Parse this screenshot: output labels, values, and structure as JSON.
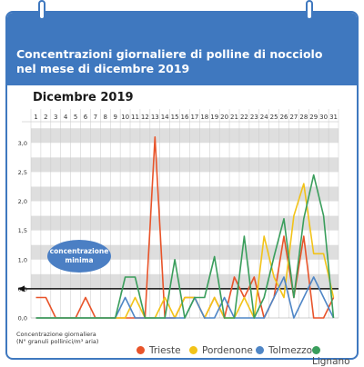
{
  "header": {
    "title_line1": "Concentrazioni giornaliere di polline di nocciolo",
    "title_line2": "nel mese di dicembre 2019"
  },
  "month_label": "Dicembre 2019",
  "annotation": {
    "line1": "concentrazione",
    "line2": "minima"
  },
  "footnote": {
    "line1": "Concentrazione giornaliera",
    "line2": "(N° granuli pollinici/m³ aria)"
  },
  "chart_data": {
    "type": "line",
    "title": "",
    "xlabel": "",
    "ylabel": "Concentrazione giornaliera (N° granuli pollinici/m³ aria)",
    "x": [
      1,
      2,
      3,
      4,
      5,
      6,
      7,
      8,
      9,
      10,
      11,
      12,
      13,
      14,
      15,
      16,
      17,
      18,
      19,
      20,
      21,
      22,
      23,
      24,
      25,
      26,
      27,
      28,
      29,
      30,
      31
    ],
    "y_ticks": [
      "0,0",
      "0,5",
      "1,0",
      "1,5",
      "2,0",
      "2,5",
      "3,0"
    ],
    "ylim": [
      0,
      3.3
    ],
    "threshold": 0.5,
    "grid": "alternating horizontal bands",
    "legend_position": "bottom",
    "series": [
      {
        "name": "Trieste",
        "color": "#e8542a",
        "values": [
          0.35,
          0.35,
          0,
          0,
          0,
          0.35,
          0,
          0,
          0,
          0,
          0,
          0,
          3.1,
          0,
          0,
          0.35,
          0.35,
          0,
          0.35,
          0,
          0.7,
          0.35,
          0.7,
          0,
          0.35,
          1.4,
          0.35,
          1.4,
          0,
          0,
          0.35
        ]
      },
      {
        "name": "Pordenone",
        "color": "#f2c318",
        "values": [
          0,
          0,
          0,
          0,
          0,
          0,
          0,
          0,
          0,
          0,
          0.35,
          0,
          0,
          0.35,
          0,
          0.35,
          0.35,
          0,
          0.35,
          0,
          0,
          0.35,
          0,
          1.4,
          0.7,
          0.35,
          1.75,
          2.3,
          1.1,
          1.1,
          0.35
        ]
      },
      {
        "name": "Tolmezzo",
        "color": "#4f86c6",
        "values": [
          0,
          0,
          0,
          0,
          0,
          0,
          0,
          0,
          0,
          0.35,
          0,
          0,
          0,
          0,
          0,
          0,
          0.35,
          0,
          0,
          0.35,
          0,
          0,
          0,
          0,
          0.35,
          0.7,
          0,
          0.35,
          0.7,
          0.35,
          0
        ]
      },
      {
        "name": "Lignano",
        "color": "#3a9e5c",
        "values": [
          0,
          0,
          0,
          0,
          0,
          0,
          0,
          0,
          0,
          0.7,
          0.7,
          0,
          0,
          0,
          1.0,
          0,
          0.35,
          0.35,
          1.05,
          0,
          0,
          1.4,
          0,
          0.35,
          1.05,
          1.7,
          0.35,
          1.7,
          2.45,
          1.75,
          0
        ]
      }
    ]
  }
}
